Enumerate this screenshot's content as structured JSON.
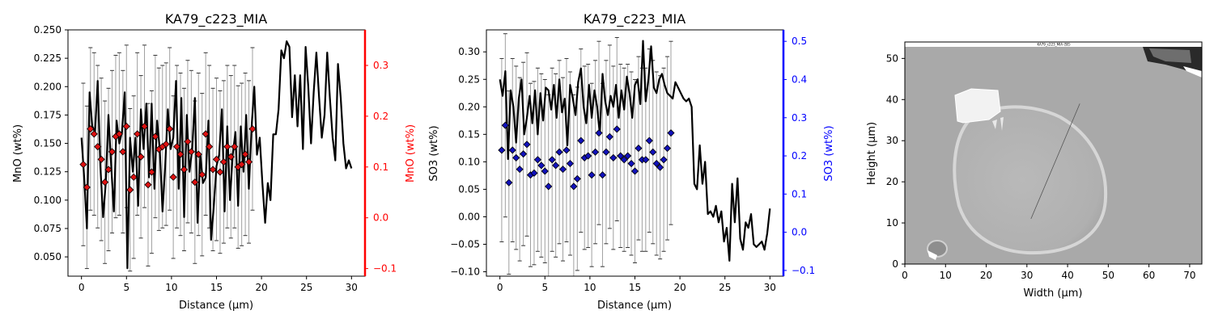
{
  "colors": {
    "line": "#000000",
    "errorbar": "#a0a0a0",
    "mno_marker": "#dd1111",
    "so3_marker": "#1111bb",
    "right_axis_red": "#ff0000",
    "right_axis_blue": "#0000ff"
  },
  "chart_data": [
    {
      "type": "line",
      "title": "KA79_c223_MIA",
      "xlabel": "Distance (µm)",
      "ylabel": "MnO (wt%)",
      "ylabel_right": "MnO (wt%)",
      "xlim": [
        -1.5,
        31.5
      ],
      "ylim": [
        0.033,
        0.25
      ],
      "ylim_right": [
        -0.115,
        0.37
      ],
      "xticks": [
        "0",
        "5",
        "10",
        "15",
        "20",
        "25",
        "30"
      ],
      "yticks": [
        "0.050",
        "0.075",
        "0.100",
        "0.125",
        "0.150",
        "0.175",
        "0.200",
        "0.225",
        "0.250"
      ],
      "yticks_right": [
        "−0.1",
        "0.0",
        "0.1",
        "0.2",
        "0.3"
      ],
      "line": {
        "x": [
          0.0,
          0.3,
          0.6,
          0.9,
          1.2,
          1.5,
          1.8,
          2.1,
          2.4,
          2.7,
          3.0,
          3.3,
          3.6,
          3.9,
          4.2,
          4.5,
          4.8,
          5.1,
          5.4,
          5.7,
          6.0,
          6.3,
          6.6,
          6.9,
          7.2,
          7.5,
          7.8,
          8.1,
          8.4,
          8.7,
          9.0,
          9.3,
          9.6,
          9.9,
          10.2,
          10.5,
          10.8,
          11.1,
          11.4,
          11.7,
          12.0,
          12.3,
          12.6,
          12.9,
          13.2,
          13.5,
          13.8,
          14.1,
          14.4,
          14.7,
          15.0,
          15.3,
          15.6,
          15.9,
          16.2,
          16.5,
          16.8,
          17.1,
          17.4,
          17.7,
          18.0,
          18.3,
          18.6,
          18.9,
          19.2,
          19.5,
          19.8,
          20.1,
          20.4,
          20.7,
          21.0,
          21.3,
          21.6,
          21.9,
          22.2,
          22.5,
          22.8,
          23.1,
          23.4,
          23.7,
          24.0,
          24.3,
          24.6,
          24.9,
          25.2,
          25.5,
          25.8,
          26.1,
          26.4,
          26.7,
          27.0,
          27.3,
          27.6,
          27.9,
          28.2,
          28.5,
          28.8,
          29.1,
          29.4,
          29.7,
          30.0
        ],
        "y": [
          0.155,
          0.12,
          0.075,
          0.195,
          0.165,
          0.16,
          0.205,
          0.13,
          0.085,
          0.115,
          0.175,
          0.13,
          0.09,
          0.17,
          0.15,
          0.16,
          0.195,
          0.04,
          0.155,
          0.125,
          0.155,
          0.095,
          0.18,
          0.145,
          0.185,
          0.12,
          0.185,
          0.11,
          0.17,
          0.145,
          0.09,
          0.13,
          0.18,
          0.145,
          0.155,
          0.205,
          0.11,
          0.19,
          0.085,
          0.175,
          0.125,
          0.145,
          0.19,
          0.08,
          0.14,
          0.115,
          0.12,
          0.17,
          0.065,
          0.095,
          0.13,
          0.14,
          0.18,
          0.09,
          0.165,
          0.1,
          0.14,
          0.16,
          0.095,
          0.165,
          0.125,
          0.175,
          0.11,
          0.165,
          0.2,
          0.14,
          0.155,
          0.115,
          0.08,
          0.115,
          0.1,
          0.158,
          0.158,
          0.18,
          0.232,
          0.225,
          0.24,
          0.235,
          0.173,
          0.21,
          0.165,
          0.21,
          0.145,
          0.235,
          0.2,
          0.15,
          0.195,
          0.23,
          0.19,
          0.155,
          0.175,
          0.23,
          0.19,
          0.155,
          0.135,
          0.22,
          0.19,
          0.15,
          0.128,
          0.135,
          0.128
        ],
        "width": 2.2
      },
      "markers": {
        "x": [
          0.2,
          0.6,
          1.0,
          1.4,
          1.8,
          2.2,
          2.6,
          3.0,
          3.4,
          3.8,
          4.2,
          4.6,
          5.0,
          5.4,
          5.8,
          6.2,
          6.6,
          7.0,
          7.4,
          7.8,
          8.2,
          8.6,
          9.0,
          9.4,
          9.8,
          10.2,
          10.6,
          11.0,
          11.4,
          11.8,
          12.2,
          12.6,
          13.0,
          13.4,
          13.8,
          14.2,
          14.6,
          15.0,
          15.4,
          15.8,
          16.2,
          16.6,
          17.0,
          17.4,
          17.8,
          18.2,
          18.6,
          19.0
        ],
        "y": [
          0.105,
          0.06,
          0.175,
          0.165,
          0.14,
          0.115,
          0.07,
          0.095,
          0.13,
          0.16,
          0.165,
          0.13,
          0.18,
          0.055,
          0.08,
          0.165,
          0.12,
          0.18,
          0.065,
          0.09,
          0.16,
          0.135,
          0.14,
          0.145,
          0.175,
          0.08,
          0.14,
          0.125,
          0.095,
          0.15,
          0.13,
          0.07,
          0.125,
          0.085,
          0.165,
          0.14,
          0.095,
          0.115,
          0.09,
          0.11,
          0.14,
          0.12,
          0.14,
          0.1,
          0.105,
          0.125,
          0.11,
          0.175
        ]
      },
      "errorbars": {
        "x": [
          0.2,
          0.6,
          1.0,
          1.4,
          1.8,
          2.2,
          2.6,
          3.0,
          3.4,
          3.8,
          4.2,
          4.6,
          5.0,
          5.4,
          5.8,
          6.2,
          6.6,
          7.0,
          7.4,
          7.8,
          8.2,
          8.6,
          9.0,
          9.4,
          9.8,
          10.2,
          10.6,
          11.0,
          11.4,
          11.8,
          12.2,
          12.6,
          13.0,
          13.4,
          13.8,
          14.2,
          14.6,
          15.0,
          15.4,
          15.8,
          16.2,
          16.6,
          17.0,
          17.4,
          17.8,
          18.2,
          18.6,
          19.0
        ],
        "half_width": 0.16
      }
    },
    {
      "type": "line",
      "title": "KA79_c223_MIA",
      "xlabel": "Distance (µm)",
      "ylabel": "SO3 (wt%)",
      "ylabel_right": "SO3 (wt%)",
      "xlim": [
        -1.5,
        31.5
      ],
      "ylim": [
        -0.108,
        0.34
      ],
      "ylim_right": [
        -0.115,
        0.53
      ],
      "xticks": [
        "0",
        "5",
        "10",
        "15",
        "20",
        "25",
        "30"
      ],
      "yticks": [
        "−0.10",
        "−0.05",
        "0.00",
        "0.05",
        "0.10",
        "0.15",
        "0.20",
        "0.25",
        "0.30"
      ],
      "yticks_right": [
        "−0.1",
        "0.0",
        "0.1",
        "0.2",
        "0.3",
        "0.4",
        "0.5"
      ],
      "line": {
        "x": [
          0.0,
          0.3,
          0.6,
          0.9,
          1.2,
          1.5,
          1.8,
          2.1,
          2.4,
          2.7,
          3.0,
          3.3,
          3.6,
          3.9,
          4.2,
          4.5,
          4.8,
          5.1,
          5.4,
          5.7,
          6.0,
          6.3,
          6.6,
          6.9,
          7.2,
          7.5,
          7.8,
          8.1,
          8.4,
          8.7,
          9.0,
          9.3,
          9.6,
          9.9,
          10.2,
          10.5,
          10.8,
          11.1,
          11.4,
          11.7,
          12.0,
          12.3,
          12.6,
          12.9,
          13.2,
          13.5,
          13.8,
          14.1,
          14.4,
          14.7,
          15.0,
          15.3,
          15.6,
          15.9,
          16.2,
          16.5,
          16.8,
          17.1,
          17.4,
          17.7,
          18.0,
          18.3,
          18.6,
          18.9,
          19.2,
          19.5,
          19.8,
          20.1,
          20.4,
          20.7,
          21.0,
          21.3,
          21.6,
          21.9,
          22.2,
          22.5,
          22.8,
          23.1,
          23.4,
          23.7,
          24.0,
          24.3,
          24.6,
          24.9,
          25.2,
          25.5,
          25.8,
          26.1,
          26.4,
          26.7,
          27.0,
          27.3,
          27.6,
          27.9,
          28.2,
          28.5,
          28.8,
          29.1,
          29.4,
          29.7,
          30.0
        ],
        "y": [
          0.25,
          0.22,
          0.265,
          0.105,
          0.23,
          0.2,
          0.135,
          0.215,
          0.25,
          0.15,
          0.18,
          0.22,
          0.17,
          0.23,
          0.15,
          0.225,
          0.175,
          0.235,
          0.23,
          0.195,
          0.24,
          0.18,
          0.25,
          0.19,
          0.215,
          0.13,
          0.24,
          0.215,
          0.185,
          0.245,
          0.27,
          0.2,
          0.17,
          0.24,
          0.18,
          0.23,
          0.2,
          0.15,
          0.26,
          0.21,
          0.185,
          0.22,
          0.2,
          0.24,
          0.18,
          0.23,
          0.195,
          0.255,
          0.225,
          0.18,
          0.24,
          0.25,
          0.205,
          0.32,
          0.21,
          0.25,
          0.31,
          0.235,
          0.225,
          0.25,
          0.26,
          0.24,
          0.225,
          0.22,
          0.215,
          0.245,
          0.235,
          0.225,
          0.215,
          0.21,
          0.215,
          0.2,
          0.06,
          0.05,
          0.13,
          0.06,
          0.1,
          0.005,
          0.01,
          0.0,
          0.02,
          -0.01,
          0.01,
          -0.045,
          -0.02,
          -0.08,
          0.06,
          -0.01,
          0.07,
          -0.04,
          -0.06,
          -0.01,
          -0.02,
          0.005,
          -0.05,
          -0.055,
          -0.05,
          -0.045,
          -0.06,
          -0.03,
          0.015
        ],
        "width": 2.2
      },
      "markers": {
        "x": [
          0.2,
          0.6,
          1.0,
          1.4,
          1.8,
          2.2,
          2.6,
          3.0,
          3.4,
          3.8,
          4.2,
          4.6,
          5.0,
          5.4,
          5.8,
          6.2,
          6.6,
          7.0,
          7.4,
          7.8,
          8.2,
          8.6,
          9.0,
          9.4,
          9.8,
          10.2,
          10.6,
          11.0,
          11.4,
          11.8,
          12.2,
          12.6,
          13.0,
          13.4,
          13.8,
          14.2,
          14.6,
          15.0,
          15.4,
          15.8,
          16.2,
          16.6,
          17.0,
          17.4,
          17.8,
          18.2,
          18.6,
          19.0
        ],
        "y": [
          0.215,
          0.28,
          0.13,
          0.215,
          0.195,
          0.165,
          0.205,
          0.23,
          0.15,
          0.155,
          0.19,
          0.175,
          0.16,
          0.12,
          0.19,
          0.175,
          0.21,
          0.165,
          0.215,
          0.18,
          0.12,
          0.14,
          0.24,
          0.195,
          0.2,
          0.15,
          0.21,
          0.26,
          0.15,
          0.21,
          0.25,
          0.195,
          0.27,
          0.2,
          0.19,
          0.2,
          0.18,
          0.16,
          0.22,
          0.19,
          0.19,
          0.24,
          0.21,
          0.18,
          0.17,
          0.19,
          0.22,
          0.26
        ]
      },
      "errorbars": {
        "x": [
          0.2,
          0.6,
          1.0,
          1.4,
          1.8,
          2.2,
          2.6,
          3.0,
          3.4,
          3.8,
          4.2,
          4.6,
          5.0,
          5.4,
          5.8,
          6.2,
          6.6,
          7.0,
          7.4,
          7.8,
          8.2,
          8.6,
          9.0,
          9.4,
          9.8,
          10.2,
          10.6,
          11.0,
          11.4,
          11.8,
          12.2,
          12.6,
          13.0,
          13.4,
          13.8,
          14.2,
          14.6,
          15.0,
          15.4,
          15.8,
          16.2,
          16.6,
          17.0,
          17.4,
          17.8,
          18.2,
          18.6,
          19.0
        ],
        "half_width": 0.24
      }
    },
    {
      "type": "image",
      "title": "KA79_c223_MIA (SE)",
      "xlabel": "Width (µm)",
      "ylabel": "Height (µm)",
      "xlim": [
        0,
        73
      ],
      "ylim": [
        0,
        54
      ],
      "xticks": [
        "0",
        "10",
        "20",
        "30",
        "40",
        "50",
        "60",
        "70"
      ],
      "yticks": [
        "0",
        "10",
        "20",
        "30",
        "40",
        "50"
      ],
      "transect": {
        "x": [
          31,
          43
        ],
        "y": [
          11,
          39
        ]
      }
    }
  ]
}
